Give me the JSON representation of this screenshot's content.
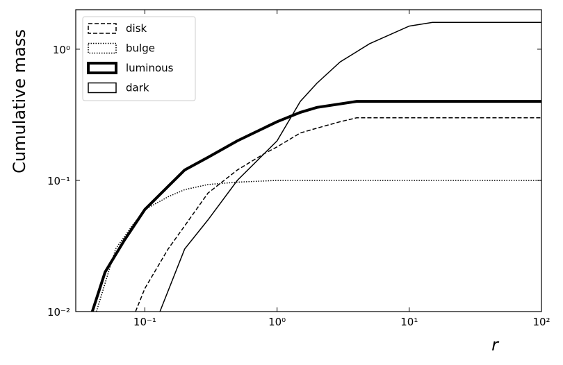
{
  "chart_data": {
    "type": "line",
    "xlabel": "r",
    "ylabel": "Cumulative mass",
    "log_x": true,
    "log_y": true,
    "xlim": [
      0.03,
      100
    ],
    "ylim": [
      0.01,
      2
    ],
    "xticks": [
      {
        "value": 0.1,
        "label": "10⁻¹"
      },
      {
        "value": 1,
        "label": "10⁰"
      },
      {
        "value": 10,
        "label": "10¹"
      },
      {
        "value": 100,
        "label": "10²"
      }
    ],
    "yticks": [
      {
        "value": 0.01,
        "label": "10⁻²"
      },
      {
        "value": 0.1,
        "label": "10⁻¹"
      },
      {
        "value": 1,
        "label": "10⁰"
      }
    ],
    "legend": "upper left",
    "series": [
      {
        "name": "disk",
        "color": "#000000",
        "linestyle": "dashed",
        "linewidth": 1.5,
        "x": [
          0.085,
          0.1,
          0.15,
          0.2,
          0.3,
          0.5,
          0.8,
          1,
          1.5,
          2,
          3,
          4,
          100
        ],
        "values": [
          0.01,
          0.015,
          0.03,
          0.045,
          0.08,
          0.12,
          0.16,
          0.18,
          0.23,
          0.25,
          0.28,
          0.3,
          0.3
        ]
      },
      {
        "name": "bulge",
        "color": "#000000",
        "linestyle": "dotted",
        "linewidth": 1.5,
        "x": [
          0.043,
          0.06,
          0.08,
          0.1,
          0.15,
          0.2,
          0.3,
          0.5,
          1,
          100
        ],
        "values": [
          0.01,
          0.03,
          0.045,
          0.06,
          0.075,
          0.085,
          0.093,
          0.097,
          0.1,
          0.1
        ]
      },
      {
        "name": "luminous",
        "color": "#000000",
        "linestyle": "solid",
        "linewidth": 4,
        "x": [
          0.04,
          0.05,
          0.07,
          0.1,
          0.15,
          0.2,
          0.3,
          0.5,
          1,
          1.5,
          2,
          4,
          100
        ],
        "values": [
          0.01,
          0.02,
          0.035,
          0.06,
          0.09,
          0.12,
          0.15,
          0.2,
          0.28,
          0.33,
          0.36,
          0.4,
          0.4
        ]
      },
      {
        "name": "dark",
        "color": "#000000",
        "linestyle": "solid",
        "linewidth": 1.5,
        "x": [
          0.13,
          0.2,
          0.3,
          0.5,
          1,
          1.5,
          2,
          3,
          5,
          10,
          15,
          100
        ],
        "values": [
          0.01,
          0.03,
          0.05,
          0.1,
          0.2,
          0.4,
          0.55,
          0.8,
          1.1,
          1.5,
          1.6,
          1.6
        ]
      }
    ]
  }
}
